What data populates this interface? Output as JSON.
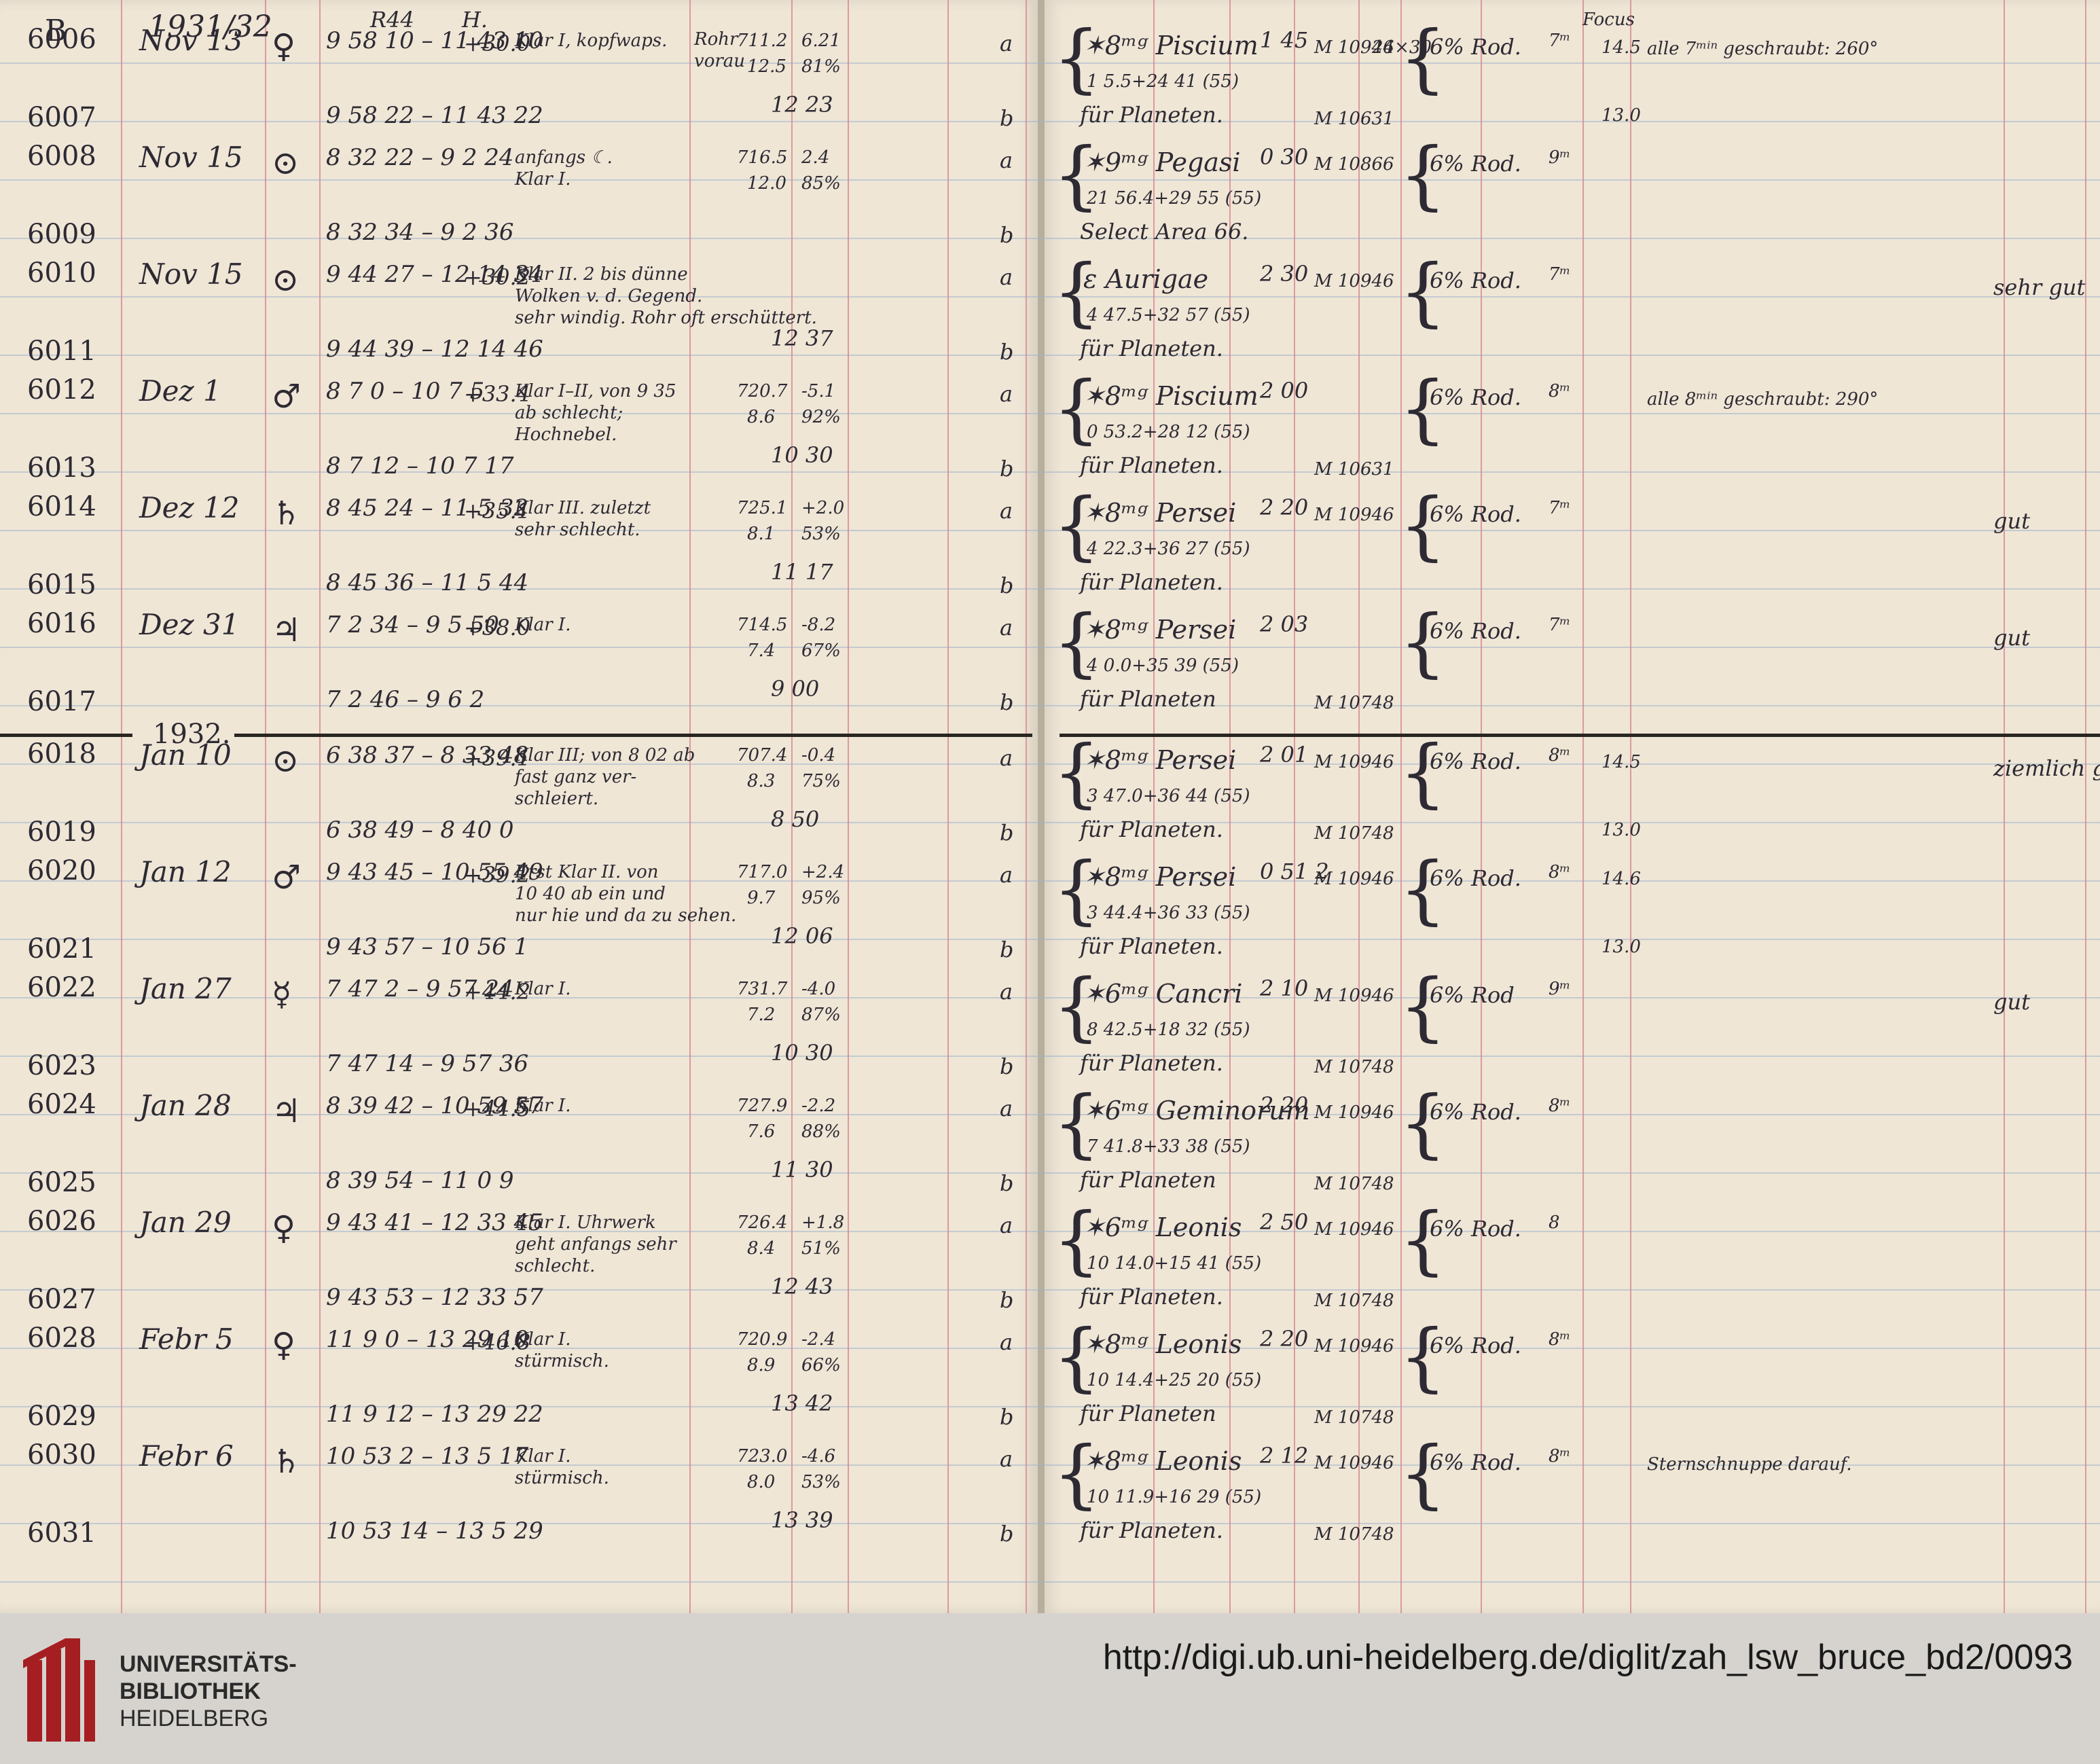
{
  "header": {
    "series": "B",
    "year": "1931/32",
    "col_R44": "R44",
    "col_H": "H.",
    "col_focus": "Focus"
  },
  "year_separator": "1932.",
  "rows": [
    {
      "a": "6006",
      "b": "6007",
      "date": "Nov 13",
      "day": "♀",
      "t1": "9 58 10 – 11 43 10",
      "t2": "9 58 22 – 11 43 22",
      "temp": "+30.0",
      "weather": "Klar I, kopfwaps.",
      "clock": "Rohr",
      "clock2": "vorau",
      "baro": "711.2",
      "baro2": "12.5",
      "tb": "6.21",
      "hum": "81%",
      "ra": "12 23",
      "obj": "✶8ᵐᵍ Piscium",
      "pos": "1  5.5+24 41 (55)",
      "pos2": "für Planeten.",
      "dur": "1 45",
      "plate": "M 10946",
      "plate2": "M 10631",
      "size": "24×30",
      "filter": "6% Rod.",
      "exp": "7ᵐ",
      "focus": "14.5",
      "focus2": "13.0",
      "remark": "alle 7ᵐⁱⁿ geschraubt: 260°",
      "note": "",
      "la": "a",
      "lb": "b"
    },
    {
      "a": "6008",
      "b": "6009",
      "date": "Nov 15",
      "day": "⊙",
      "t1": "8 32 22 – 9 2 24",
      "t2": "8 32 34 – 9 2 36",
      "temp": "",
      "weather": "anfangs ☾.",
      "weather2": "Klar I.",
      "clock": "",
      "clock2": "",
      "baro": "716.5",
      "baro2": "12.0",
      "tb": "2.4",
      "hum": "85%",
      "ra": "",
      "obj": "✶9ᵐᵍ Pegasi",
      "pos": "21  56.4+29 55 (55)",
      "pos2": "Select Area 66.",
      "dur": "0 30",
      "plate": "M 10866",
      "plate2": "",
      "size": "",
      "filter": "6% Rod.",
      "exp": "9ᵐ",
      "focus": "",
      "focus2": "",
      "remark": "",
      "note": "",
      "la": "a",
      "lb": "b"
    },
    {
      "a": "6010",
      "b": "6011",
      "date": "Nov 15",
      "day": "⊙",
      "t1": "9 44 27 – 12 14 34",
      "t2": "9 44 39 – 12 14 46",
      "temp": "+30.2",
      "weather": "Klar II. 2 bis dünne",
      "weather2": "Wolken v. d. Gegend.",
      "weather3": "sehr windig. Rohr oft erschüttert.",
      "clock": "",
      "clock2": "",
      "baro": "",
      "baro2": "",
      "tb": "",
      "hum": "",
      "ra": "12 37",
      "obj": "ε Aurigae",
      "pos": "4  47.5+32 57 (55)",
      "pos2": "für Planeten.",
      "dur": "2 30",
      "plate": "M 10946",
      "plate2": "",
      "size": "",
      "filter": "6% Rod.",
      "exp": "7ᵐ",
      "focus": "",
      "focus2": "",
      "remark": "",
      "note": "sehr gut",
      "la": "a",
      "lb": "b"
    },
    {
      "a": "6012",
      "b": "6013",
      "date": "Dez 1",
      "day": "♂",
      "t1": "8 7 0 – 10 7 5",
      "t2": "8 7 12 – 10 7 17",
      "temp": "+33.4",
      "weather": "Klar I–II, von 9 35",
      "weather2": "ab schlecht;",
      "weather3": "Hochnebel.",
      "clock": "",
      "clock2": "",
      "baro": "720.7",
      "baro2": "8.6",
      "tb": "-5.1",
      "hum": "92%",
      "ra": "10 30",
      "obj": "✶8ᵐᵍ Piscium",
      "pos": "0  53.2+28 12 (55)",
      "pos2": "für Planeten.",
      "dur": "2 00",
      "plate": "",
      "plate2": "M 10631",
      "size": "",
      "filter": "6% Rod.",
      "exp": "8ᵐ",
      "focus": "",
      "focus2": "",
      "remark": "alle 8ᵐⁱⁿ geschraubt: 290°",
      "note": "",
      "la": "a",
      "lb": "b"
    },
    {
      "a": "6014",
      "b": "6015",
      "date": "Dez 12",
      "day": "♄",
      "t1": "8 45 24 – 11 5 32",
      "t2": "8 45 36 – 11 5 44",
      "temp": "+35.1",
      "weather": "Klar III. zuletzt",
      "weather2": "sehr schlecht.",
      "clock": "",
      "clock2": "",
      "baro": "725.1",
      "baro2": "8.1",
      "tb": "+2.0",
      "hum": "53%",
      "ra": "11 17",
      "obj": "✶8ᵐᵍ Persei",
      "pos": "4  22.3+36 27 (55)",
      "pos2": "für Planeten.",
      "dur": "2 20",
      "plate": "M 10946",
      "plate2": "",
      "size": "",
      "filter": "6% Rod.",
      "exp": "7ᵐ",
      "focus": "",
      "focus2": "",
      "remark": "",
      "note": "gut",
      "la": "a",
      "lb": "b"
    },
    {
      "a": "6016",
      "b": "6017",
      "date": "Dez 31",
      "day": "♃",
      "t1": "7 2 34 – 9 5 50",
      "t2": "7 2 46 – 9 6 2",
      "temp": "+38.0",
      "weather": "Klar I.",
      "clock": "",
      "clock2": "",
      "baro": "714.5",
      "baro2": "7.4",
      "tb": "-8.2",
      "hum": "67%",
      "ra": "9 00",
      "obj": "✶8ᵐᵍ Persei",
      "pos": "4  0.0+35 39 (55)",
      "pos2": "für Planeten",
      "dur": "2 03",
      "plate": "",
      "plate2": "M 10748",
      "size": "",
      "filter": "6% Rod.",
      "exp": "7ᵐ",
      "focus": "",
      "focus2": "",
      "remark": "",
      "note": "gut",
      "la": "a",
      "lb": "b"
    },
    {
      "a": "6018",
      "b": "6019",
      "date": "Jan 10",
      "day": "⊙",
      "t1": "6 38 37 – 8 33 48",
      "t2": "6 38 49 – 8 40 0",
      "temp": "+39.1",
      "weather": "Klar III; von 8 02 ab",
      "weather2": "fast ganz ver-",
      "weather3": "schleiert.",
      "clock": "",
      "clock2": "",
      "baro": "707.4",
      "baro2": "8.3",
      "tb": "-0.4",
      "hum": "75%",
      "ra": "8 50",
      "obj": "✶8ᵐᵍ Persei",
      "pos": "3  47.0+36 44 (55)",
      "pos2": "für Planeten.",
      "dur": "2 01",
      "plate": "M 10946",
      "plate2": "M 10748",
      "size": "",
      "filter": "6% Rod.",
      "exp": "8ᵐ",
      "focus": "14.5",
      "focus2": "13.0",
      "remark": "",
      "note": "ziemlich gut",
      "la": "a",
      "lb": "b"
    },
    {
      "a": "6020",
      "b": "6021",
      "date": "Jan 12",
      "day": "♂",
      "t1": "9 43 45 – 10 55 49",
      "t2": "9 43 57 – 10 56 1",
      "temp": "+39.2",
      "weather": "Erst Klar II. von",
      "weather2": "10 40 ab ein und",
      "weather3": "nur hie und da zu sehen.",
      "clock": "",
      "clock2": "",
      "baro": "717.0",
      "baro2": "9.7",
      "tb": "+2.4",
      "hum": "95%",
      "ra": "12 06",
      "obj": "✶8ᵐᵍ Persei",
      "pos": "3  44.4+36 33 (55)",
      "pos2": "für Planeten.",
      "dur": "0 51 2",
      "plate": "M 10946",
      "plate2": "",
      "size": "",
      "filter": "6% Rod.",
      "exp": "8ᵐ",
      "focus": "14.6",
      "focus2": "13.0",
      "remark": "",
      "note": "",
      "la": "a",
      "lb": "b"
    },
    {
      "a": "6022",
      "b": "6023",
      "date": "Jan 27",
      "day": "☿",
      "t1": "7 47 2 – 9 57 24",
      "t2": "7 47 14 – 9 57 36",
      "temp": "+44.2",
      "weather": "Klar I.",
      "clock": "",
      "clock2": "",
      "baro": "731.7",
      "baro2": "7.2",
      "tb": "-4.0",
      "hum": "87%",
      "ra": "10 30",
      "obj": "✶6ᵐᵍ Cancri",
      "pos": "8  42.5+18 32 (55)",
      "pos2": "für Planeten.",
      "dur": "2 10",
      "plate": "M 10946",
      "plate2": "M 10748",
      "size": "",
      "filter": "6% Rod",
      "exp": "9ᵐ",
      "focus": "",
      "focus2": "",
      "remark": "",
      "note": "gut",
      "la": "a",
      "lb": "b"
    },
    {
      "a": "6024",
      "b": "6025",
      "date": "Jan 28",
      "day": "♃",
      "t1": "8 39 42 – 10 59 57",
      "t2": "8 39 54 – 11 0 9",
      "temp": "+44.5",
      "weather": "Klar I.",
      "clock": "",
      "clock2": "",
      "baro": "727.9",
      "baro2": "7.6",
      "tb": "-2.2",
      "hum": "88%",
      "ra": "11 30",
      "obj": "✶6ᵐᵍ Geminorum",
      "pos": "7  41.8+33 38 (55)",
      "pos2": "für Planeten",
      "dur": "2 20",
      "plate": "M 10946",
      "plate2": "M 10748",
      "size": "",
      "filter": "6% Rod.",
      "exp": "8ᵐ",
      "focus": "",
      "focus2": "",
      "remark": "",
      "note": "",
      "la": "a",
      "lb": "b"
    },
    {
      "a": "6026",
      "b": "6027",
      "date": "Jan 29",
      "day": "♀",
      "t1": "9 43 41 – 12 33 45",
      "t2": "9 43 53 – 12 33 57",
      "temp": "",
      "weather": "Klar I. Uhrwerk",
      "weather2": "geht anfangs sehr",
      "weather3": "schlecht.",
      "clock": "",
      "clock2": "",
      "baro": "726.4",
      "baro2": "8.4",
      "tb": "+1.8",
      "hum": "51%",
      "ra": "12 43",
      "obj": "✶6ᵐᵍ Leonis",
      "pos": "10  14.0+15 41 (55)",
      "pos2": "für Planeten.",
      "dur": "2 50",
      "plate": "M 10946",
      "plate2": "M 10748",
      "size": "",
      "filter": "6% Rod.",
      "exp": "8",
      "focus": "",
      "focus2": "",
      "remark": "",
      "note": "",
      "la": "a",
      "lb": "b"
    },
    {
      "a": "6028",
      "b": "6029",
      "date": "Febr 5",
      "day": "♀",
      "t1": "11 9 0 – 13 29 10",
      "t2": "11 9 12 – 13 29 22",
      "temp": "+46.8",
      "weather": "Klar I.",
      "weather2": "stürmisch.",
      "clock": "",
      "clock2": "",
      "baro": "720.9",
      "baro2": "8.9",
      "tb": "-2.4",
      "hum": "66%",
      "ra": "13 42",
      "obj": "✶8ᵐᵍ Leonis",
      "pos": "10  14.4+25 20 (55)",
      "pos2": "für Planeten",
      "dur": "2 20",
      "plate": "M 10946",
      "plate2": "M 10748",
      "size": "",
      "filter": "6% Rod.",
      "exp": "8ᵐ",
      "focus": "",
      "focus2": "",
      "remark": "",
      "note": "",
      "la": "a",
      "lb": "b"
    },
    {
      "a": "6030",
      "b": "6031",
      "date": "Febr 6",
      "day": "♄",
      "t1": "10 53 2 – 13 5 17",
      "t2": "10 53 14 – 13 5 29",
      "temp": "",
      "weather": "Klar I.",
      "weather2": "stürmisch.",
      "clock": "",
      "clock2": "",
      "baro": "723.0",
      "baro2": "8.0",
      "tb": "-4.6",
      "hum": "53%",
      "ra": "13 39",
      "obj": "✶8ᵐᵍ Leonis",
      "pos": "10  11.9+16 29 (55)",
      "pos2": "für Planeten.",
      "dur": "2 12",
      "plate": "M 10946",
      "plate2": "M 10748",
      "size": "",
      "filter": "6% Rod.",
      "exp": "8ᵐ",
      "focus": "",
      "focus2": "",
      "remark": "Sternschnuppe darauf.",
      "note": "",
      "la": "a",
      "lb": "b"
    }
  ],
  "footer": {
    "logo_line1": "UNIVERSITÄTS-",
    "logo_line2": "BIBLIOTHEK",
    "logo_line3": "HEIDELBERG",
    "url": "http://digi.ub.uni-heidelberg.de/diglit/zah_lsw_bruce_bd2/0093"
  }
}
